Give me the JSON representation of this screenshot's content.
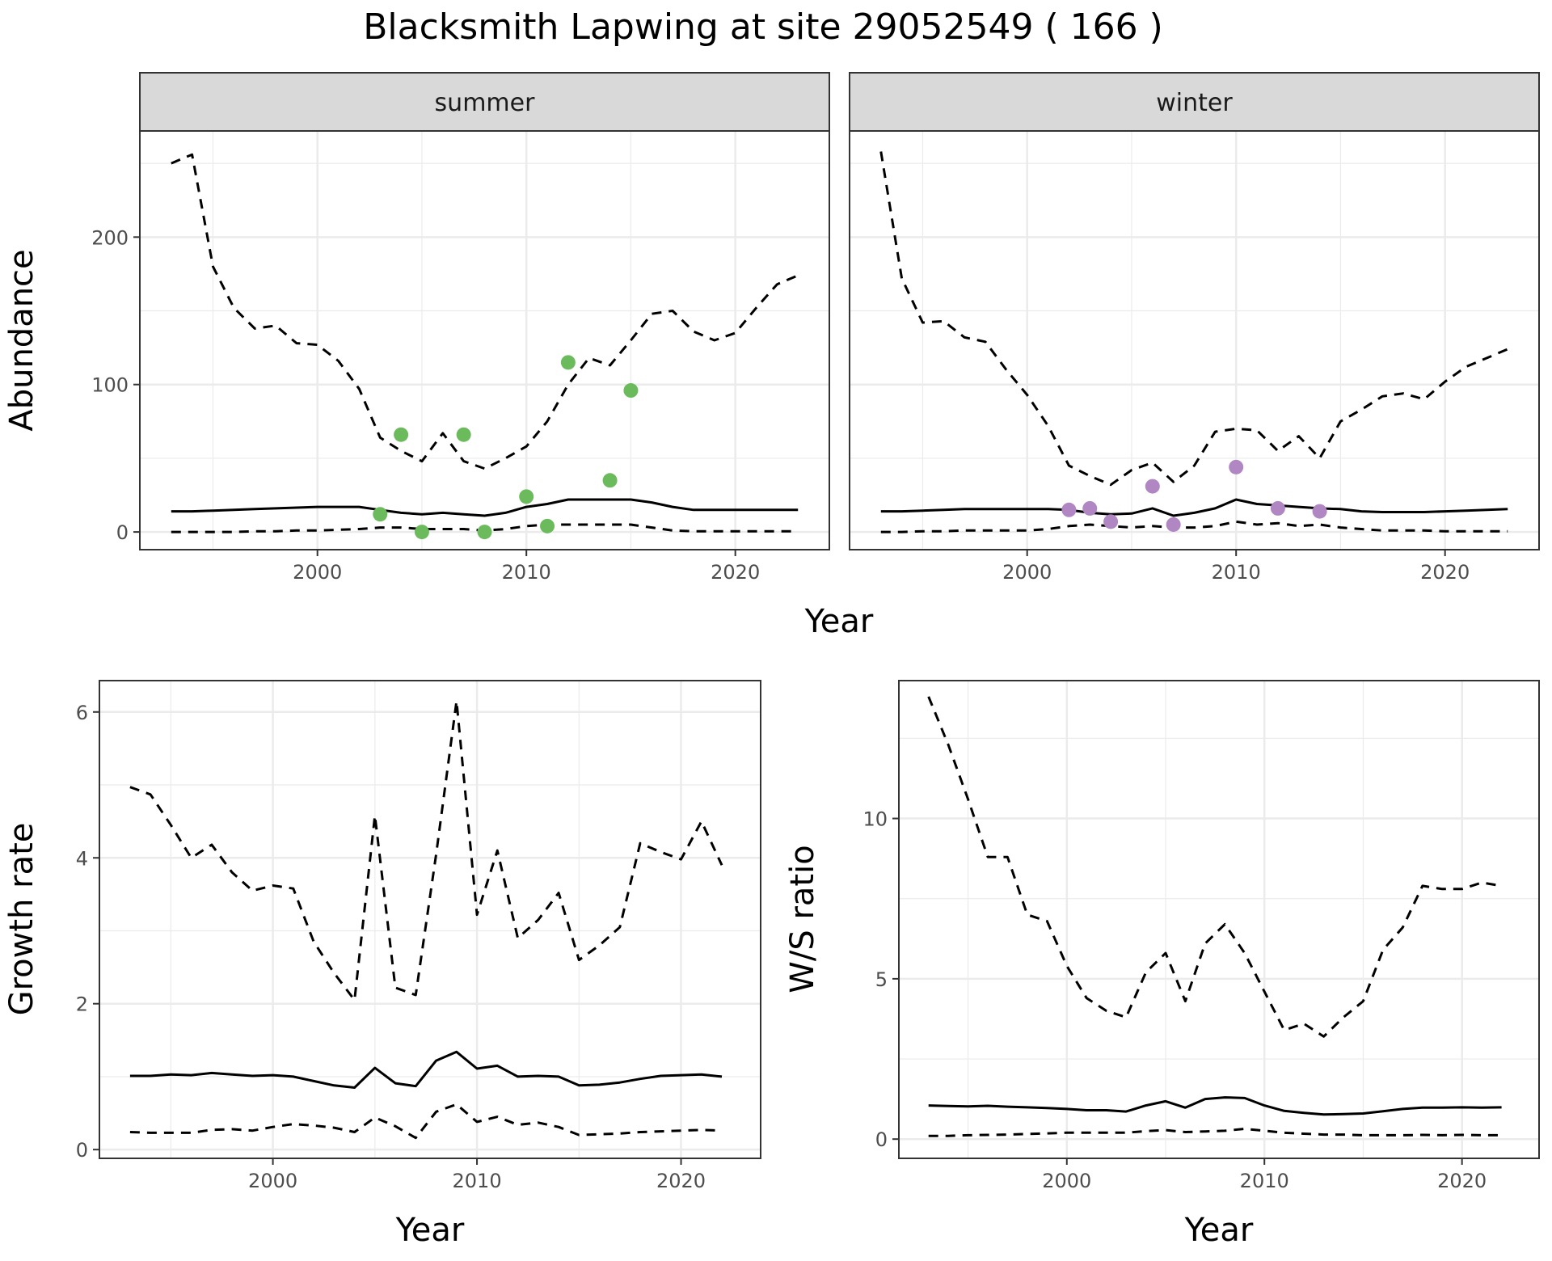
{
  "page_title": "Blacksmith Lapwing at site 29052549 ( 166 )",
  "chart_data": [
    {
      "id": "abundance-summer",
      "type": "line",
      "facet_label": "summer",
      "title": "",
      "xlabel": "Year",
      "ylabel": "Abundance",
      "xlim": [
        1991.5,
        2024.5
      ],
      "ylim": [
        -12,
        272
      ],
      "x_ticks": [
        2000,
        2010,
        2020
      ],
      "x_minor": [
        1995,
        2005,
        2015
      ],
      "y_ticks": [
        0,
        100,
        200
      ],
      "y_minor": [
        50,
        150,
        250
      ],
      "grid": true,
      "point_color": "#6bbb5c",
      "x": [
        1993,
        1994,
        1995,
        1996,
        1997,
        1998,
        1999,
        2000,
        2001,
        2002,
        2003,
        2004,
        2005,
        2006,
        2007,
        2008,
        2009,
        2010,
        2011,
        2012,
        2013,
        2014,
        2015,
        2016,
        2017,
        2018,
        2019,
        2020,
        2021,
        2022,
        2023
      ],
      "series": [
        {
          "name": "",
          "style": "solid",
          "values": [
            14,
            14,
            14.5,
            15,
            15.5,
            16,
            16.5,
            17,
            17,
            17,
            15,
            13,
            12,
            13,
            12,
            11,
            13,
            17,
            19,
            22,
            22,
            22,
            22,
            20,
            17,
            15,
            15,
            15,
            15,
            15,
            15
          ]
        },
        {
          "name": "",
          "style": "dashed",
          "values": [
            250,
            256,
            180,
            152,
            138,
            140,
            128,
            127,
            116,
            97,
            64,
            55,
            48,
            67,
            48,
            43,
            50,
            58,
            75,
            100,
            118,
            113,
            130,
            148,
            150,
            136,
            130,
            135,
            152,
            168,
            174
          ]
        },
        {
          "name": "",
          "style": "dashed",
          "values": [
            0,
            0,
            0,
            0,
            0.5,
            0.5,
            1,
            1,
            1.5,
            2,
            3,
            3,
            2,
            2,
            2,
            1,
            2,
            4,
            5,
            5,
            5,
            5,
            5,
            3,
            1,
            0.5,
            0.5,
            0.5,
            0.5,
            0.5,
            0.5
          ]
        }
      ],
      "points": [
        {
          "x": 2003,
          "y": 12
        },
        {
          "x": 2004,
          "y": 66
        },
        {
          "x": 2005,
          "y": 0
        },
        {
          "x": 2007,
          "y": 66
        },
        {
          "x": 2008,
          "y": 0
        },
        {
          "x": 2010,
          "y": 24
        },
        {
          "x": 2011,
          "y": 4
        },
        {
          "x": 2012,
          "y": 115
        },
        {
          "x": 2014,
          "y": 35
        },
        {
          "x": 2015,
          "y": 96
        }
      ]
    },
    {
      "id": "abundance-winter",
      "type": "line",
      "facet_label": "winter",
      "title": "",
      "xlabel": "Year",
      "ylabel": "",
      "xlim": [
        1991.5,
        2024.5
      ],
      "ylim": [
        -12,
        272
      ],
      "x_ticks": [
        2000,
        2010,
        2020
      ],
      "x_minor": [
        1995,
        2005,
        2015
      ],
      "y_ticks": [],
      "y_grid": [
        0,
        100,
        200
      ],
      "y_minor": [
        50,
        150,
        250
      ],
      "grid": true,
      "point_color": "#b087c3",
      "x": [
        1993,
        1994,
        1995,
        1996,
        1997,
        1998,
        1999,
        2000,
        2001,
        2002,
        2003,
        2004,
        2005,
        2006,
        2007,
        2008,
        2009,
        2010,
        2011,
        2012,
        2013,
        2014,
        2015,
        2016,
        2017,
        2018,
        2019,
        2020,
        2021,
        2022,
        2023
      ],
      "series": [
        {
          "name": "",
          "style": "solid",
          "values": [
            14,
            14,
            14.5,
            15,
            15.5,
            15.5,
            15.5,
            15.5,
            15.5,
            15,
            13,
            12,
            12.5,
            16,
            11,
            13,
            16,
            22,
            19,
            18,
            17,
            16,
            15.5,
            14,
            13.5,
            13.5,
            13.5,
            14,
            14.5,
            15,
            15.5
          ]
        },
        {
          "name": "",
          "style": "dashed",
          "values": [
            258,
            172,
            142,
            143,
            132,
            129,
            110,
            93,
            72,
            45,
            38,
            32,
            42,
            47,
            34,
            45,
            68,
            70,
            69,
            55,
            65,
            50,
            75,
            83,
            92,
            94,
            90,
            102,
            112,
            118,
            124
          ]
        },
        {
          "name": "",
          "style": "dashed",
          "values": [
            0,
            0,
            0.5,
            0.5,
            1,
            1,
            1,
            1,
            2,
            4,
            5,
            4,
            3,
            4,
            3,
            3,
            4,
            7,
            5,
            6,
            4,
            5,
            3,
            2,
            1,
            1,
            1,
            0.5,
            0.5,
            0.5,
            0.5
          ]
        }
      ],
      "points": [
        {
          "x": 2002,
          "y": 15
        },
        {
          "x": 2003,
          "y": 16
        },
        {
          "x": 2004,
          "y": 7
        },
        {
          "x": 2006,
          "y": 31
        },
        {
          "x": 2007,
          "y": 5
        },
        {
          "x": 2010,
          "y": 44
        },
        {
          "x": 2012,
          "y": 16
        },
        {
          "x": 2014,
          "y": 14
        }
      ]
    },
    {
      "id": "growth-rate",
      "type": "line",
      "title": "",
      "xlabel": "Year",
      "ylabel": "Growth rate",
      "xlim": [
        1991.5,
        2023.9
      ],
      "ylim": [
        -0.12,
        6.43
      ],
      "x_ticks": [
        2000,
        2010,
        2020
      ],
      "x_minor": [
        1995,
        2005,
        2015
      ],
      "y_ticks": [
        0,
        2,
        4,
        6
      ],
      "y_minor": [
        1,
        3,
        5
      ],
      "grid": true,
      "x": [
        1993,
        1994,
        1995,
        1996,
        1997,
        1998,
        1999,
        2000,
        2001,
        2002,
        2003,
        2004,
        2005,
        2006,
        2007,
        2008,
        2009,
        2010,
        2011,
        2012,
        2013,
        2014,
        2015,
        2016,
        2017,
        2018,
        2019,
        2020,
        2021,
        2022
      ],
      "series": [
        {
          "name": "",
          "style": "solid",
          "values": [
            1.01,
            1.01,
            1.03,
            1.02,
            1.05,
            1.03,
            1.01,
            1.02,
            1.0,
            0.94,
            0.88,
            0.85,
            1.12,
            0.91,
            0.87,
            1.22,
            1.34,
            1.11,
            1.15,
            1.0,
            1.01,
            1.0,
            0.88,
            0.89,
            0.92,
            0.97,
            1.01,
            1.02,
            1.03,
            1.0
          ]
        },
        {
          "name": "",
          "style": "dashed",
          "values": [
            4.97,
            4.87,
            4.45,
            4.0,
            4.18,
            3.8,
            3.55,
            3.62,
            3.58,
            2.85,
            2.42,
            2.05,
            4.58,
            2.22,
            2.12,
            4.05,
            6.15,
            3.22,
            4.1,
            2.9,
            3.15,
            3.52,
            2.6,
            2.8,
            3.05,
            4.2,
            4.08,
            3.98,
            4.5,
            3.9
          ]
        },
        {
          "name": "",
          "style": "dashed",
          "values": [
            0.24,
            0.23,
            0.23,
            0.23,
            0.27,
            0.28,
            0.26,
            0.31,
            0.35,
            0.33,
            0.3,
            0.24,
            0.44,
            0.32,
            0.16,
            0.52,
            0.62,
            0.38,
            0.45,
            0.34,
            0.37,
            0.31,
            0.2,
            0.21,
            0.22,
            0.24,
            0.25,
            0.26,
            0.27,
            0.26
          ]
        }
      ]
    },
    {
      "id": "ws-ratio",
      "type": "line",
      "title": "",
      "xlabel": "Year",
      "ylabel": "W/S ratio",
      "xlim": [
        1991.5,
        2023.9
      ],
      "ylim": [
        -0.6,
        14.3
      ],
      "x_ticks": [
        2000,
        2010,
        2020
      ],
      "x_minor": [
        1995,
        2005,
        2015
      ],
      "y_ticks": [
        0,
        5,
        10
      ],
      "y_minor": [
        2.5,
        7.5,
        12.5
      ],
      "grid": true,
      "x": [
        1993,
        1994,
        1995,
        1996,
        1997,
        1998,
        1999,
        2000,
        2001,
        2002,
        2003,
        2004,
        2005,
        2006,
        2007,
        2008,
        2009,
        2010,
        2011,
        2012,
        2013,
        2014,
        2015,
        2016,
        2017,
        2018,
        2019,
        2020,
        2021,
        2022
      ],
      "series": [
        {
          "name": "",
          "style": "solid",
          "values": [
            1.05,
            1.03,
            1.02,
            1.04,
            1.01,
            0.99,
            0.97,
            0.94,
            0.9,
            0.9,
            0.86,
            1.05,
            1.18,
            0.98,
            1.25,
            1.3,
            1.28,
            1.05,
            0.88,
            0.82,
            0.77,
            0.78,
            0.8,
            0.87,
            0.94,
            0.98,
            0.98,
            0.99,
            0.98,
            0.99
          ]
        },
        {
          "name": "",
          "style": "dashed",
          "values": [
            13.8,
            12.3,
            10.6,
            8.8,
            8.8,
            7.0,
            6.8,
            5.4,
            4.4,
            4.0,
            3.8,
            5.2,
            5.8,
            4.3,
            6.1,
            6.7,
            5.8,
            4.6,
            3.4,
            3.6,
            3.2,
            3.8,
            4.3,
            5.9,
            6.6,
            7.9,
            7.8,
            7.8,
            8.0,
            7.9
          ]
        },
        {
          "name": "",
          "style": "dashed",
          "values": [
            0.1,
            0.1,
            0.12,
            0.13,
            0.14,
            0.16,
            0.18,
            0.2,
            0.2,
            0.2,
            0.2,
            0.25,
            0.28,
            0.22,
            0.24,
            0.26,
            0.32,
            0.26,
            0.2,
            0.17,
            0.14,
            0.14,
            0.12,
            0.12,
            0.12,
            0.13,
            0.12,
            0.13,
            0.12,
            0.12
          ]
        }
      ]
    }
  ]
}
